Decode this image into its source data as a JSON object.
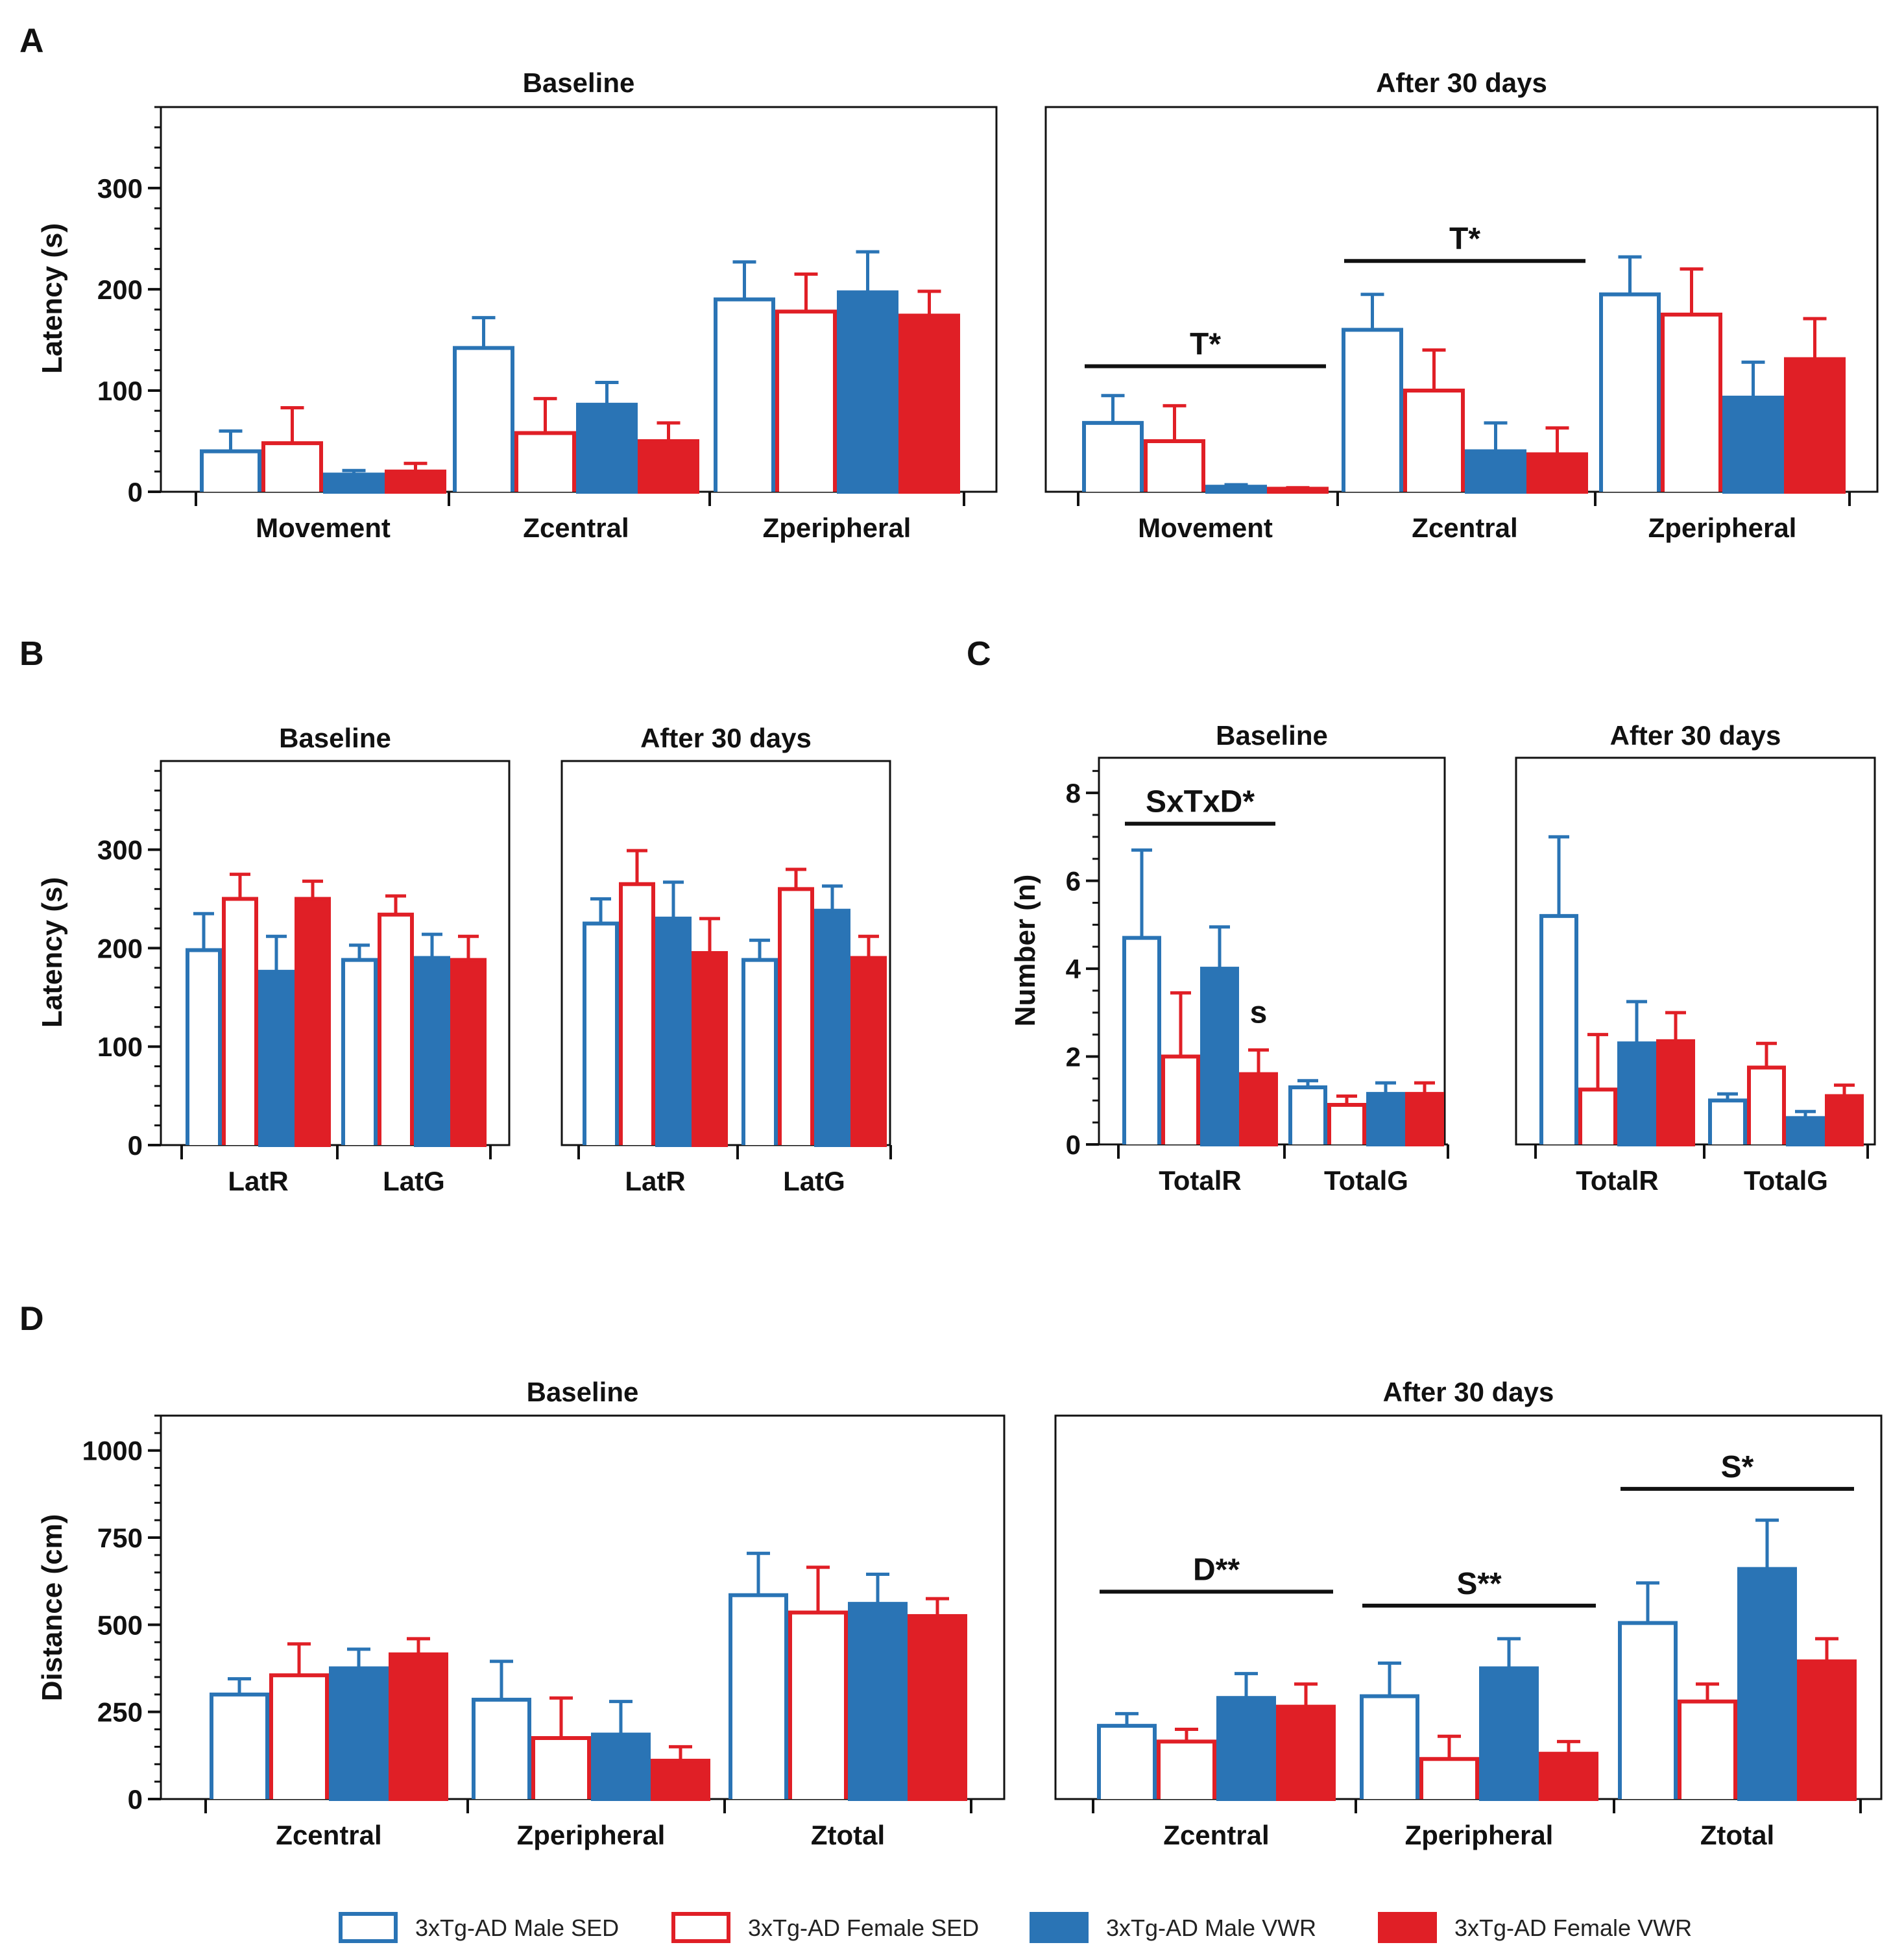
{
  "panels": {
    "A": "A",
    "B": "B",
    "C": "C",
    "D": "D"
  },
  "colors": {
    "blue": "#2a74b5",
    "red": "#e01f26",
    "axis": "#111111"
  },
  "legend": [
    {
      "label": "3xTg-AD Male SED",
      "color": "#2a74b5",
      "filled": false
    },
    {
      "label": "3xTg-AD Female SED",
      "color": "#e01f26",
      "filled": false
    },
    {
      "label": "3xTg-AD Male VWR",
      "color": "#2a74b5",
      "filled": true
    },
    {
      "label": "3xTg-AD Female VWR",
      "color": "#e01f26",
      "filled": true
    }
  ],
  "chart_data": [
    {
      "id": "A-baseline",
      "panel": "A",
      "type": "bar",
      "title": "Baseline",
      "ylabel": "Latency (s)",
      "ylim": [
        0,
        380
      ],
      "yticks": [
        0,
        100,
        200,
        300
      ],
      "minor_step": 20,
      "categories": [
        "Movement",
        "Zcentral",
        "Zperipheral"
      ],
      "series": [
        {
          "name": "3xTg-AD Male SED",
          "values": [
            40,
            142,
            190
          ],
          "errors": [
            20,
            30,
            37
          ]
        },
        {
          "name": "3xTg-AD Female SED",
          "values": [
            48,
            58,
            178
          ],
          "errors": [
            35,
            34,
            37
          ]
        },
        {
          "name": "3xTg-AD Male VWR",
          "values": [
            17,
            86,
            197
          ],
          "errors": [
            4,
            22,
            40
          ]
        },
        {
          "name": "3xTg-AD Female VWR",
          "values": [
            20,
            50,
            174
          ],
          "errors": [
            8,
            18,
            24
          ]
        }
      ],
      "annotations": []
    },
    {
      "id": "A-after",
      "panel": "A",
      "type": "bar",
      "title": "After 30 days",
      "ylabel": "",
      "ylim": [
        0,
        380
      ],
      "yticks": [],
      "minor_step": 0,
      "categories": [
        "Movement",
        "Zcentral",
        "Zperipheral"
      ],
      "series": [
        {
          "name": "3xTg-AD Male SED",
          "values": [
            68,
            160,
            195
          ],
          "errors": [
            27,
            35,
            37
          ]
        },
        {
          "name": "3xTg-AD Female SED",
          "values": [
            50,
            100,
            175
          ],
          "errors": [
            35,
            40,
            45
          ]
        },
        {
          "name": "3xTg-AD Male VWR",
          "values": [
            5,
            40,
            93
          ],
          "errors": [
            2,
            28,
            35
          ]
        },
        {
          "name": "3xTg-AD Female VWR",
          "values": [
            3,
            37,
            131
          ],
          "errors": [
            1,
            26,
            40
          ]
        }
      ],
      "annotations": [
        {
          "text": "T*",
          "value": 124,
          "from_category": 0,
          "to_category": 0
        },
        {
          "text": "T*",
          "value": 228,
          "from_category": 1,
          "to_category": 1
        }
      ]
    },
    {
      "id": "B-baseline",
      "panel": "B",
      "type": "bar",
      "title": "Baseline",
      "ylabel": "Latency (s)",
      "ylim": [
        0,
        390
      ],
      "yticks": [
        0,
        100,
        200,
        300
      ],
      "minor_step": 20,
      "categories": [
        "LatR",
        "LatG"
      ],
      "series": [
        {
          "name": "3xTg-AD Male SED",
          "values": [
            198,
            188
          ],
          "errors": [
            37,
            15
          ]
        },
        {
          "name": "3xTg-AD Female SED",
          "values": [
            250,
            234
          ],
          "errors": [
            25,
            19
          ]
        },
        {
          "name": "3xTg-AD Male VWR",
          "values": [
            176,
            190
          ],
          "errors": [
            36,
            24
          ]
        },
        {
          "name": "3xTg-AD Female VWR",
          "values": [
            250,
            188
          ],
          "errors": [
            18,
            24
          ]
        }
      ],
      "annotations": []
    },
    {
      "id": "B-after",
      "panel": "B",
      "type": "bar",
      "title": "After 30 days",
      "ylabel": "",
      "ylim": [
        0,
        390
      ],
      "yticks": [],
      "minor_step": 0,
      "categories": [
        "LatR",
        "LatG"
      ],
      "series": [
        {
          "name": "3xTg-AD Male SED",
          "values": [
            225,
            188
          ],
          "errors": [
            25,
            20
          ]
        },
        {
          "name": "3xTg-AD Female SED",
          "values": [
            265,
            260
          ],
          "errors": [
            34,
            20
          ]
        },
        {
          "name": "3xTg-AD Male VWR",
          "values": [
            230,
            238
          ],
          "errors": [
            37,
            25
          ]
        },
        {
          "name": "3xTg-AD Female VWR",
          "values": [
            195,
            190
          ],
          "errors": [
            35,
            22
          ]
        }
      ],
      "annotations": []
    },
    {
      "id": "C-baseline",
      "panel": "C",
      "type": "bar",
      "title": "Baseline",
      "ylabel": "Number (n)",
      "ylim": [
        0,
        8.8
      ],
      "yticks": [
        0,
        2,
        4,
        6,
        8
      ],
      "minor_step": 0.5,
      "categories": [
        "TotalR",
        "TotalG"
      ],
      "series": [
        {
          "name": "3xTg-AD Male SED",
          "values": [
            4.7,
            1.3
          ],
          "errors": [
            2.0,
            0.15
          ]
        },
        {
          "name": "3xTg-AD Female SED",
          "values": [
            2.0,
            0.9
          ],
          "errors": [
            1.45,
            0.2
          ]
        },
        {
          "name": "3xTg-AD Male VWR",
          "values": [
            4.0,
            1.15
          ],
          "errors": [
            0.95,
            0.25
          ]
        },
        {
          "name": "3xTg-AD Female VWR",
          "values": [
            1.6,
            1.15
          ],
          "errors": [
            0.55,
            0.25
          ]
        }
      ],
      "annotations": [
        {
          "text": "SxTxD*",
          "value": 7.3,
          "from_category": 0,
          "to_category": 0
        },
        {
          "text": "s",
          "value": 2.5,
          "category": 0,
          "series": 3
        }
      ]
    },
    {
      "id": "C-after",
      "panel": "C",
      "type": "bar",
      "title": "After 30 days",
      "ylabel": "",
      "ylim": [
        0,
        8.8
      ],
      "yticks": [],
      "minor_step": 0,
      "categories": [
        "TotalR",
        "TotalG"
      ],
      "series": [
        {
          "name": "3xTg-AD Male SED",
          "values": [
            5.2,
            1.0
          ],
          "errors": [
            1.8,
            0.15
          ]
        },
        {
          "name": "3xTg-AD Female SED",
          "values": [
            1.25,
            1.75
          ],
          "errors": [
            1.25,
            0.55
          ]
        },
        {
          "name": "3xTg-AD Male VWR",
          "values": [
            2.3,
            0.6
          ],
          "errors": [
            0.95,
            0.15
          ]
        },
        {
          "name": "3xTg-AD Female VWR",
          "values": [
            2.35,
            1.1
          ],
          "errors": [
            0.65,
            0.25
          ]
        }
      ],
      "annotations": []
    },
    {
      "id": "D-baseline",
      "panel": "D",
      "type": "bar",
      "title": "Baseline",
      "ylabel": "Distance (cm)",
      "ylim": [
        0,
        1100
      ],
      "yticks": [
        0,
        250,
        500,
        750,
        1000
      ],
      "minor_step": 50,
      "categories": [
        "Zcentral",
        "Zperipheral",
        "Ztotal"
      ],
      "series": [
        {
          "name": "3xTg-AD Male SED",
          "values": [
            300,
            285,
            585
          ],
          "errors": [
            45,
            110,
            120
          ]
        },
        {
          "name": "3xTg-AD Female SED",
          "values": [
            355,
            175,
            535
          ],
          "errors": [
            90,
            115,
            130
          ]
        },
        {
          "name": "3xTg-AD Male VWR",
          "values": [
            375,
            185,
            560
          ],
          "errors": [
            55,
            95,
            85
          ]
        },
        {
          "name": "3xTg-AD Female VWR",
          "values": [
            415,
            110,
            525
          ],
          "errors": [
            45,
            40,
            50
          ]
        }
      ],
      "annotations": []
    },
    {
      "id": "D-after",
      "panel": "D",
      "type": "bar",
      "title": "After 30 days",
      "ylabel": "",
      "ylim": [
        0,
        1100
      ],
      "yticks": [],
      "minor_step": 0,
      "categories": [
        "Zcentral",
        "Zperipheral",
        "Ztotal"
      ],
      "series": [
        {
          "name": "3xTg-AD Male SED",
          "values": [
            210,
            295,
            505
          ],
          "errors": [
            35,
            95,
            115
          ]
        },
        {
          "name": "3xTg-AD Female SED",
          "values": [
            165,
            115,
            280
          ],
          "errors": [
            35,
            65,
            50
          ]
        },
        {
          "name": "3xTg-AD Male VWR",
          "values": [
            290,
            375,
            660
          ],
          "errors": [
            70,
            85,
            140
          ]
        },
        {
          "name": "3xTg-AD Female VWR",
          "values": [
            265,
            130,
            395
          ],
          "errors": [
            65,
            35,
            65
          ]
        }
      ],
      "annotations": [
        {
          "text": "D**",
          "value": 595,
          "from_category": 0,
          "to_category": 0
        },
        {
          "text": "S**",
          "value": 555,
          "from_category": 1,
          "to_category": 1
        },
        {
          "text": "S*",
          "value": 890,
          "from_category": 2,
          "to_category": 2
        }
      ]
    }
  ]
}
